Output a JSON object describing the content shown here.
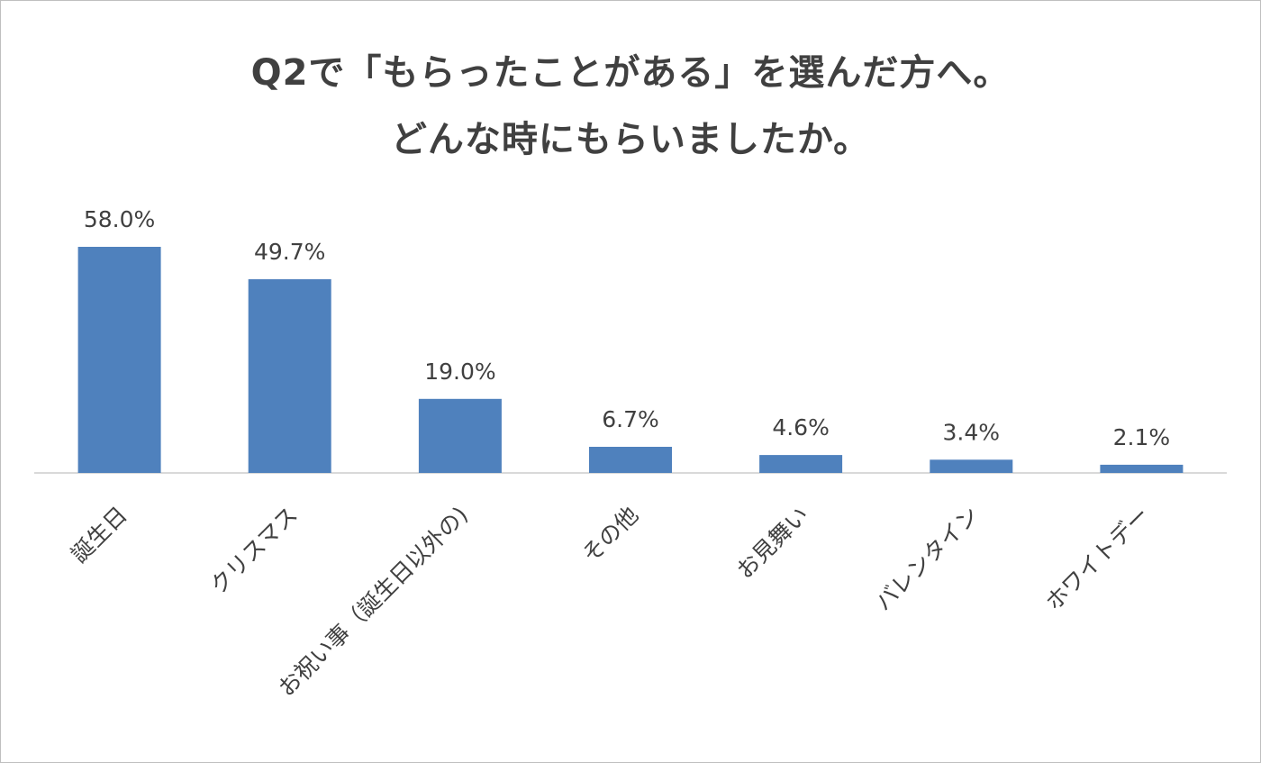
{
  "chart_data": {
    "type": "bar",
    "title_lines": [
      "Q2で「もらったことがある」を選んだ方へ。",
      "どんな時にもらいましたか。"
    ],
    "categories": [
      "誕生日",
      "クリスマス",
      "お祝い事（誕生日以外の)",
      "その他",
      "お見舞い",
      "バレンタイン",
      "ホワイトデー"
    ],
    "values": [
      58.0,
      49.7,
      19.0,
      6.7,
      4.6,
      3.4,
      2.1
    ],
    "data_labels": [
      "58.0%",
      "49.7%",
      "19.0%",
      "6.7%",
      "4.6%",
      "3.4%",
      "2.1%"
    ],
    "xlabel": "",
    "ylabel": "",
    "ylim": [
      0,
      70
    ],
    "grid": false,
    "legend": "none",
    "bar_color": "#4f81bd",
    "axis_color": "#d9d9d9",
    "text_color": "#404040"
  }
}
